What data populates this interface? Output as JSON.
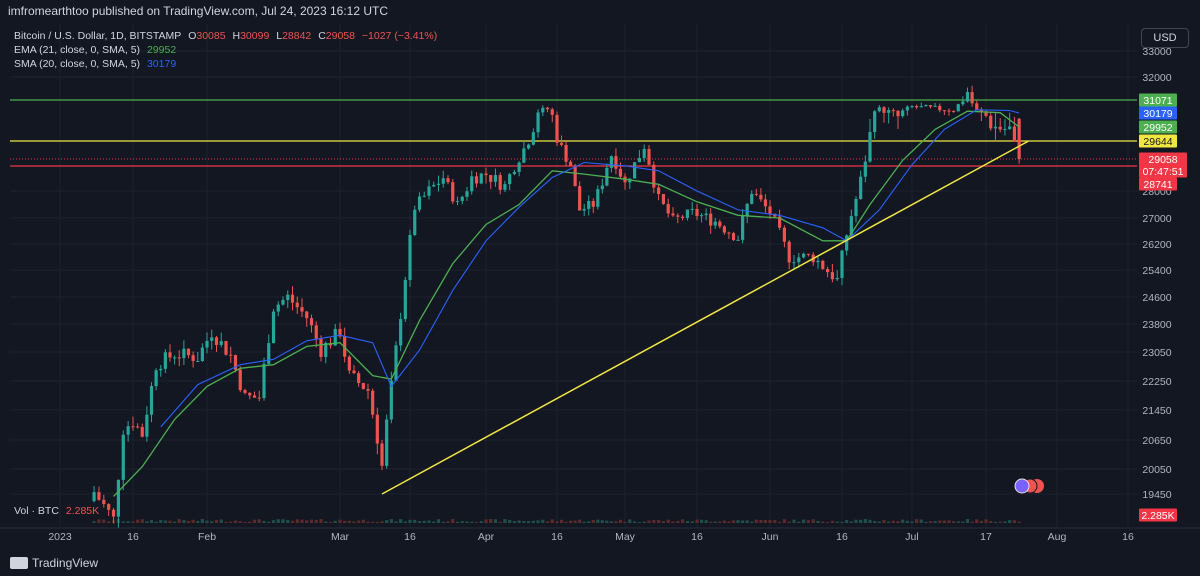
{
  "header": {
    "published": "imfromearthtoo published on TradingView.com, Jul 24, 2023 16:12 UTC"
  },
  "legend": {
    "symbol": "Bitcoin / U.S. Dollar, 1D, BITSTAMP",
    "o_label": "O",
    "o_value": "30085",
    "h_label": "H",
    "h_value": "30099",
    "l_label": "L",
    "l_value": "28842",
    "c_label": "C",
    "c_value": "29058",
    "change": "−1027 (−3.41%)",
    "ema_label": "EMA (21, close, 0, SMA, 5)",
    "ema_value": "29952",
    "sma_label": "SMA (20, close, 0, SMA, 5)",
    "sma_value": "30179",
    "vol_label": "Vol · BTC",
    "vol_value": "2.285K"
  },
  "currency": "USD",
  "footer": {
    "brand": "TradingView"
  },
  "colors": {
    "bg": "#131722",
    "up": "#26a69a",
    "down": "#ef5350",
    "ema": "#4caf50",
    "sma": "#2962ff",
    "support": "#f0e642",
    "resistance_green": "#4caf50",
    "resistance_yellow": "#f0e642",
    "red_line": "#f23645"
  },
  "chart_data": {
    "type": "candlestick",
    "symbol": "Bitcoin / U.S. Dollar",
    "interval": "1D",
    "exchange": "BITSTAMP",
    "y_axis_ticks": [
      "33000",
      "32000",
      "28000",
      "27000",
      "26200",
      "25400",
      "24600",
      "23800",
      "23050",
      "22250",
      "21450",
      "20650",
      "20050",
      "19450"
    ],
    "x_axis_ticks": [
      "2023",
      "16",
      "Feb",
      "Mar",
      "16",
      "Apr",
      "16",
      "May",
      "16",
      "Jun",
      "16",
      "Jul",
      "17",
      "Aug",
      "16"
    ],
    "price_labels": [
      {
        "value": "31071",
        "color": "#4caf50"
      },
      {
        "value": "30179",
        "color": "#2962ff"
      },
      {
        "value": "29952",
        "color": "#4caf50"
      },
      {
        "value": "29644",
        "color": "#f0e642"
      },
      {
        "value": "29058",
        "color": "#f23645"
      },
      {
        "value": "07:47:51",
        "color": "#f23645"
      },
      {
        "value": "28741",
        "color": "#f23645"
      },
      {
        "value": "2.285K",
        "color": "#f23645"
      }
    ],
    "horizontal_lines": [
      {
        "price": 31071,
        "color": "#4caf50"
      },
      {
        "price": 29644,
        "color": "#f0e642"
      },
      {
        "price": 28741,
        "color": "#f23645"
      }
    ],
    "trendline": {
      "from": {
        "date": "2023-03-10",
        "price": 19450
      },
      "to": {
        "date": "2023-07-26",
        "price": 29644
      },
      "color": "#f0e642"
    },
    "close_path": [
      {
        "x": "2023-01-08",
        "y": 19500
      },
      {
        "x": "2023-01-12",
        "y": 18900
      },
      {
        "x": "2023-01-14",
        "y": 20950
      },
      {
        "x": "2023-01-16",
        "y": 21150
      },
      {
        "x": "2023-01-18",
        "y": 20800
      },
      {
        "x": "2023-01-21",
        "y": 22700
      },
      {
        "x": "2023-01-25",
        "y": 23000
      },
      {
        "x": "2023-01-30",
        "y": 22900
      },
      {
        "x": "2023-02-02",
        "y": 23600
      },
      {
        "x": "2023-02-06",
        "y": 22950
      },
      {
        "x": "2023-02-09",
        "y": 21800
      },
      {
        "x": "2023-02-12",
        "y": 21800
      },
      {
        "x": "2023-02-15",
        "y": 24300
      },
      {
        "x": "2023-02-18",
        "y": 24600
      },
      {
        "x": "2023-02-22",
        "y": 24000
      },
      {
        "x": "2023-02-25",
        "y": 23100
      },
      {
        "x": "2023-03-01",
        "y": 23600
      },
      {
        "x": "2023-03-03",
        "y": 22400
      },
      {
        "x": "2023-03-07",
        "y": 22000
      },
      {
        "x": "2023-03-10",
        "y": 20100
      },
      {
        "x": "2023-03-12",
        "y": 22100
      },
      {
        "x": "2023-03-14",
        "y": 24100
      },
      {
        "x": "2023-03-17",
        "y": 27400
      },
      {
        "x": "2023-03-20",
        "y": 28000
      },
      {
        "x": "2023-03-23",
        "y": 28400
      },
      {
        "x": "2023-03-26",
        "y": 27500
      },
      {
        "x": "2023-03-29",
        "y": 28400
      },
      {
        "x": "2023-04-01",
        "y": 28500
      },
      {
        "x": "2023-04-05",
        "y": 28150
      },
      {
        "x": "2023-04-10",
        "y": 29700
      },
      {
        "x": "2023-04-12",
        "y": 30300
      },
      {
        "x": "2023-04-14",
        "y": 30450
      },
      {
        "x": "2023-04-17",
        "y": 29400
      },
      {
        "x": "2023-04-19",
        "y": 28800
      },
      {
        "x": "2023-04-21",
        "y": 27300
      },
      {
        "x": "2023-04-24",
        "y": 27500
      },
      {
        "x": "2023-04-26",
        "y": 28300
      },
      {
        "x": "2023-04-28",
        "y": 29200
      },
      {
        "x": "2023-05-01",
        "y": 28200
      },
      {
        "x": "2023-05-05",
        "y": 29500
      },
      {
        "x": "2023-05-08",
        "y": 27700
      },
      {
        "x": "2023-05-11",
        "y": 26900
      },
      {
        "x": "2023-05-15",
        "y": 27200
      },
      {
        "x": "2023-05-20",
        "y": 26900
      },
      {
        "x": "2023-05-25",
        "y": 26400
      },
      {
        "x": "2023-05-28",
        "y": 28000
      },
      {
        "x": "2023-06-01",
        "y": 27200
      },
      {
        "x": "2023-06-05",
        "y": 25800
      },
      {
        "x": "2023-06-10",
        "y": 25800
      },
      {
        "x": "2023-06-15",
        "y": 25100
      },
      {
        "x": "2023-06-17",
        "y": 26500
      },
      {
        "x": "2023-06-20",
        "y": 28300
      },
      {
        "x": "2023-06-23",
        "y": 30500
      },
      {
        "x": "2023-06-28",
        "y": 30100
      },
      {
        "x": "2023-07-01",
        "y": 30600
      },
      {
        "x": "2023-07-05",
        "y": 30500
      },
      {
        "x": "2023-07-10",
        "y": 30400
      },
      {
        "x": "2023-07-13",
        "y": 31400
      },
      {
        "x": "2023-07-15",
        "y": 30300
      },
      {
        "x": "2023-07-19",
        "y": 29950
      },
      {
        "x": "2023-07-22",
        "y": 29900
      },
      {
        "x": "2023-07-24",
        "y": 29058
      }
    ],
    "ema_path": [
      {
        "x": "2023-01-12",
        "y": 19400
      },
      {
        "x": "2023-01-18",
        "y": 20100
      },
      {
        "x": "2023-01-25",
        "y": 21200
      },
      {
        "x": "2023-02-01",
        "y": 22100
      },
      {
        "x": "2023-02-08",
        "y": 22600
      },
      {
        "x": "2023-02-15",
        "y": 22700
      },
      {
        "x": "2023-02-22",
        "y": 23200
      },
      {
        "x": "2023-03-01",
        "y": 23300
      },
      {
        "x": "2023-03-08",
        "y": 22400
      },
      {
        "x": "2023-03-12",
        "y": 22300
      },
      {
        "x": "2023-03-18",
        "y": 23900
      },
      {
        "x": "2023-03-25",
        "y": 25600
      },
      {
        "x": "2023-04-01",
        "y": 26800
      },
      {
        "x": "2023-04-08",
        "y": 27500
      },
      {
        "x": "2023-04-15",
        "y": 28600
      },
      {
        "x": "2023-04-22",
        "y": 28500
      },
      {
        "x": "2023-05-01",
        "y": 28350
      },
      {
        "x": "2023-05-08",
        "y": 28200
      },
      {
        "x": "2023-05-16",
        "y": 27600
      },
      {
        "x": "2023-05-25",
        "y": 27100
      },
      {
        "x": "2023-06-03",
        "y": 27000
      },
      {
        "x": "2023-06-12",
        "y": 26300
      },
      {
        "x": "2023-06-17",
        "y": 26300
      },
      {
        "x": "2023-06-22",
        "y": 27500
      },
      {
        "x": "2023-06-29",
        "y": 29000
      },
      {
        "x": "2023-07-06",
        "y": 29900
      },
      {
        "x": "2023-07-13",
        "y": 30300
      },
      {
        "x": "2023-07-20",
        "y": 30200
      },
      {
        "x": "2023-07-24",
        "y": 29952
      }
    ],
    "sma_path": [
      {
        "x": "2023-01-22",
        "y": 21000
      },
      {
        "x": "2023-01-30",
        "y": 22150
      },
      {
        "x": "2023-02-08",
        "y": 22700
      },
      {
        "x": "2023-02-15",
        "y": 22850
      },
      {
        "x": "2023-02-22",
        "y": 23350
      },
      {
        "x": "2023-03-01",
        "y": 23500
      },
      {
        "x": "2023-03-08",
        "y": 23300
      },
      {
        "x": "2023-03-12",
        "y": 22100
      },
      {
        "x": "2023-03-18",
        "y": 23100
      },
      {
        "x": "2023-03-25",
        "y": 24800
      },
      {
        "x": "2023-04-01",
        "y": 26300
      },
      {
        "x": "2023-04-08",
        "y": 27400
      },
      {
        "x": "2023-04-15",
        "y": 28400
      },
      {
        "x": "2023-04-22",
        "y": 28900
      },
      {
        "x": "2023-05-01",
        "y": 28750
      },
      {
        "x": "2023-05-08",
        "y": 28600
      },
      {
        "x": "2023-05-16",
        "y": 28000
      },
      {
        "x": "2023-05-25",
        "y": 27300
      },
      {
        "x": "2023-06-03",
        "y": 27100
      },
      {
        "x": "2023-06-12",
        "y": 26700
      },
      {
        "x": "2023-06-17",
        "y": 26300
      },
      {
        "x": "2023-06-24",
        "y": 27300
      },
      {
        "x": "2023-07-01",
        "y": 28800
      },
      {
        "x": "2023-07-08",
        "y": 29900
      },
      {
        "x": "2023-07-15",
        "y": 30400
      },
      {
        "x": "2023-07-22",
        "y": 30350
      },
      {
        "x": "2023-07-24",
        "y": 30179
      }
    ]
  }
}
